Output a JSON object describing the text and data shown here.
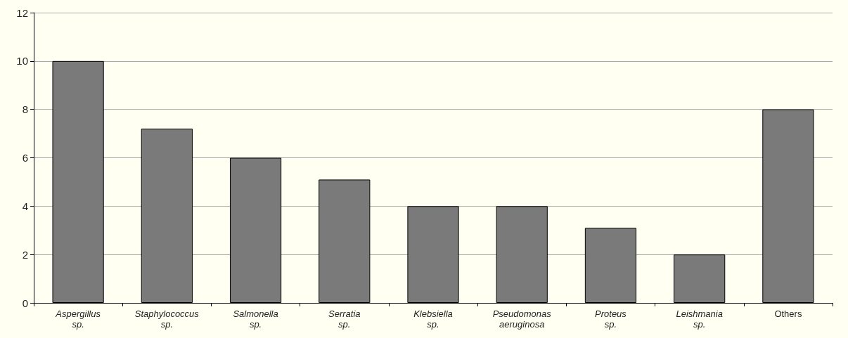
{
  "chart_data": {
    "type": "bar",
    "categories": [
      "Aspergillus sp.",
      "Staphylococcus sp.",
      "Salmonella sp.",
      "Serratia sp.",
      "Klebsiella sp.",
      "Pseudomonas aeruginosa",
      "Proteus sp.",
      "Leishmania sp.",
      "Others"
    ],
    "values": [
      10,
      7.2,
      6,
      5.1,
      4,
      4,
      3.1,
      2,
      8
    ],
    "color": "#7a7a7a",
    "ylim": [
      0,
      12
    ],
    "yticks": [
      0,
      2,
      4,
      6,
      8,
      10,
      12
    ],
    "grid": "y"
  }
}
